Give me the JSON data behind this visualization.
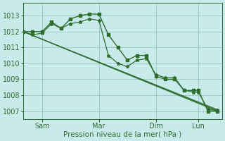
{
  "background_color": "#c8eaea",
  "grid_color": "#8fbfbf",
  "line_color": "#2d6e2d",
  "xlabel": "Pression niveau de la mer( hPa )",
  "ylim": [
    1006.5,
    1013.8
  ],
  "yticks": [
    1007,
    1008,
    1009,
    1010,
    1011,
    1012,
    1013
  ],
  "xtick_labels": [
    "Sam",
    "Mar",
    "Dim",
    "Lun"
  ],
  "xtick_positions": [
    16,
    64,
    112,
    148
  ],
  "xlim": [
    0,
    168
  ],
  "series": [
    {
      "x": [
        0,
        8,
        16,
        24,
        32,
        40,
        48,
        56,
        64,
        72,
        80,
        88,
        96,
        104,
        112,
        120,
        128,
        136,
        144,
        148,
        156,
        164
      ],
      "y": [
        1012,
        1012,
        1012,
        1012.6,
        1012.2,
        1012.8,
        1013.0,
        1013.1,
        1013.1,
        1011.8,
        1011.0,
        1010.2,
        1010.5,
        1010.5,
        1009.2,
        1009.0,
        1009.0,
        1008.3,
        1008.3,
        1008.3,
        1007.0,
        1007.0
      ],
      "marker": "s",
      "markersize": 2.5,
      "linewidth": 1.0
    },
    {
      "x": [
        0,
        8,
        16,
        24,
        32,
        40,
        48,
        56,
        64,
        72,
        80,
        88,
        96,
        104,
        112,
        120,
        128,
        136,
        144,
        148,
        156,
        164
      ],
      "y": [
        1012,
        1011.8,
        1011.9,
        1012.5,
        1012.2,
        1012.5,
        1012.6,
        1012.8,
        1012.7,
        1010.5,
        1010.0,
        1009.8,
        1010.2,
        1010.3,
        1009.3,
        1009.1,
        1009.1,
        1008.3,
        1008.2,
        1008.2,
        1007.1,
        1007.05
      ],
      "marker": "*",
      "markersize": 3.5,
      "linewidth": 0.9
    },
    {
      "x": [
        0,
        164
      ],
      "y": [
        1012,
        1007.0
      ],
      "marker": null,
      "markersize": 0,
      "linewidth": 0.9
    },
    {
      "x": [
        0,
        164
      ],
      "y": [
        1012,
        1007.05
      ],
      "marker": null,
      "markersize": 0,
      "linewidth": 0.8
    },
    {
      "x": [
        0,
        164
      ],
      "y": [
        1012,
        1007.1
      ],
      "marker": null,
      "markersize": 0,
      "linewidth": 0.7
    }
  ]
}
